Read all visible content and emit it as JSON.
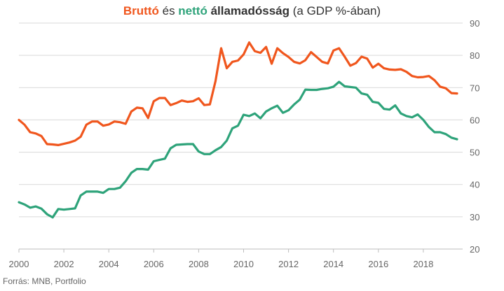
{
  "title": {
    "part1": "Bruttó",
    "part2": " és ",
    "part3": "nettó",
    "part4": " államadósság",
    "part5": " (a GDP %-ában)"
  },
  "source": "Forrás: MNB, Portfolio",
  "colors": {
    "brutto": "#f0561d",
    "netto": "#2ea37a",
    "grid": "#d9d9d9",
    "axis": "#bdbdbd"
  },
  "chart_data": {
    "type": "line",
    "title": "Bruttó és nettó államadósság (a GDP %-ában)",
    "xlim": [
      2000,
      2019.75
    ],
    "ylim": [
      20,
      90
    ],
    "x_ticks": [
      2000,
      2002,
      2004,
      2006,
      2008,
      2010,
      2012,
      2014,
      2016,
      2018
    ],
    "y_ticks": [
      20,
      30,
      40,
      50,
      60,
      70,
      80,
      90
    ],
    "y_axis_position": "right",
    "grid": "horizontal",
    "series": [
      {
        "name": "Bruttó",
        "color": "#f0561d",
        "x": [
          2000,
          2000.25,
          2000.5,
          2000.75,
          2001,
          2001.25,
          2001.5,
          2001.75,
          2002,
          2002.25,
          2002.5,
          2002.75,
          2003,
          2003.25,
          2003.5,
          2003.75,
          2004,
          2004.25,
          2004.5,
          2004.75,
          2005,
          2005.25,
          2005.5,
          2005.75,
          2006,
          2006.25,
          2006.5,
          2006.75,
          2007,
          2007.25,
          2007.5,
          2007.75,
          2008,
          2008.25,
          2008.5,
          2008.75,
          2009,
          2009.25,
          2009.5,
          2009.75,
          2010,
          2010.25,
          2010.5,
          2010.75,
          2011,
          2011.25,
          2011.5,
          2011.75,
          2012,
          2012.25,
          2012.5,
          2012.75,
          2013,
          2013.25,
          2013.5,
          2013.75,
          2014,
          2014.25,
          2014.5,
          2014.75,
          2015,
          2015.25,
          2015.5,
          2015.75,
          2016,
          2016.25,
          2016.5,
          2016.75,
          2017,
          2017.25,
          2017.5,
          2017.75,
          2018,
          2018.25,
          2018.5,
          2018.75,
          2019,
          2019.25,
          2019.5
        ],
        "values": [
          60,
          58.5,
          56.2,
          55.8,
          55,
          52.5,
          52.4,
          52.2,
          52.6,
          53,
          53.6,
          54.8,
          58.5,
          59.5,
          59.5,
          58.2,
          58.6,
          59.5,
          59.3,
          58.8,
          62.6,
          63.8,
          63.6,
          60.6,
          65.8,
          66.8,
          66.8,
          64.6,
          65.2,
          66,
          65.6,
          65.8,
          66.7,
          64.6,
          64.8,
          72,
          82.2,
          76,
          78,
          78.4,
          80.3,
          84,
          81.3,
          80.8,
          82.6,
          77.4,
          82.2,
          80.7,
          79.5,
          78,
          77.5,
          78.5,
          81,
          79.5,
          78,
          77.5,
          81.5,
          82.2,
          79.6,
          76.8,
          77.6,
          79.6,
          79,
          76.2,
          77.4,
          76,
          75.6,
          75.5,
          75.7,
          74.9,
          73.6,
          73.2,
          73.3,
          73.6,
          72.3,
          70.3,
          69.8,
          68.3,
          68.2
        ]
      },
      {
        "name": "Nettó",
        "color": "#2ea37a",
        "x": [
          2000,
          2000.25,
          2000.5,
          2000.75,
          2001,
          2001.25,
          2001.5,
          2001.75,
          2002,
          2002.25,
          2002.5,
          2002.75,
          2003,
          2003.25,
          2003.5,
          2003.75,
          2004,
          2004.25,
          2004.5,
          2004.75,
          2005,
          2005.25,
          2005.5,
          2005.75,
          2006,
          2006.25,
          2006.5,
          2006.75,
          2007,
          2007.25,
          2007.5,
          2007.75,
          2008,
          2008.25,
          2008.5,
          2008.75,
          2009,
          2009.25,
          2009.5,
          2009.75,
          2010,
          2010.25,
          2010.5,
          2010.75,
          2011,
          2011.25,
          2011.5,
          2011.75,
          2012,
          2012.25,
          2012.5,
          2012.75,
          2013,
          2013.25,
          2013.5,
          2013.75,
          2014,
          2014.25,
          2014.5,
          2014.75,
          2015,
          2015.25,
          2015.5,
          2015.75,
          2016,
          2016.25,
          2016.5,
          2016.75,
          2017,
          2017.25,
          2017.5,
          2017.75,
          2018,
          2018.25,
          2018.5,
          2018.75,
          2019,
          2019.25,
          2019.5
        ],
        "values": [
          34.5,
          33.8,
          32.8,
          33.2,
          32.5,
          30.8,
          29.8,
          32.4,
          32.2,
          32.4,
          32.6,
          36.6,
          37.8,
          37.8,
          37.8,
          37.4,
          38.6,
          38.6,
          39,
          41,
          43.6,
          44.8,
          44.8,
          44.6,
          47.2,
          47.6,
          48,
          51.2,
          52.3,
          52.4,
          52.5,
          52.5,
          50.2,
          49.4,
          49.4,
          50.6,
          51.6,
          53.6,
          57.4,
          58.2,
          61.6,
          61.2,
          62,
          60.5,
          62.6,
          63.6,
          64.4,
          62.2,
          63,
          64.8,
          66.3,
          69.4,
          69.3,
          69.3,
          69.6,
          69.8,
          70.3,
          71.8,
          70.4,
          70.2,
          70,
          68.2,
          67.8,
          65.6,
          65.3,
          63.4,
          63.2,
          64.5,
          62,
          61.2,
          60.8,
          61.7,
          60,
          57.8,
          56.2,
          56.2,
          55.6,
          54.5,
          54
        ]
      }
    ]
  }
}
